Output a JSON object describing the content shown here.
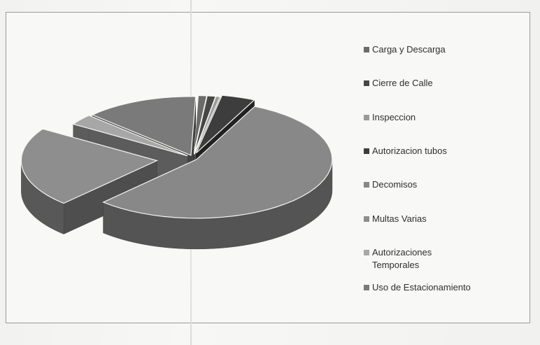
{
  "chart_data": {
    "type": "pie",
    "style": "3d-exploded",
    "title": "",
    "categories": [
      "Carga y Descarga",
      "Cierre de Calle",
      "Inspeccion",
      "Autorizacion tubos",
      "Decomisos",
      "Multas Varias",
      "Autorizaciones\nTemporales",
      "Uso de Estacionamiento"
    ],
    "values": [
      1.0,
      1.0,
      0.5,
      4.0,
      55.0,
      22.0,
      3.0,
      13.5
    ],
    "colors": [
      "#6b6b6b",
      "#474747",
      "#9a9a9a",
      "#3d3d3d",
      "#888888",
      "#8e8e8e",
      "#a7a7a7",
      "#7a7a7a"
    ],
    "legend": "right"
  }
}
